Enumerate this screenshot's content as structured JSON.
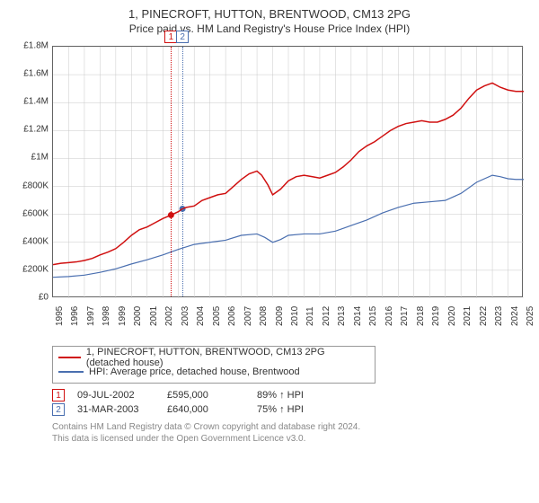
{
  "title": "1, PINECROFT, HUTTON, BRENTWOOD, CM13 2PG",
  "subtitle": "Price paid vs. HM Land Registry's House Price Index (HPI)",
  "chart": {
    "type": "line",
    "background_color": "#ffffff",
    "border_color": "#646464",
    "grid_color": "#c8c8c8",
    "ylim": [
      0,
      1800000
    ],
    "ytick_step": 200000,
    "ytick_labels": [
      "£0",
      "£200K",
      "£400K",
      "£600K",
      "£800K",
      "£1M",
      "£1.2M",
      "£1.4M",
      "£1.6M",
      "£1.8M"
    ],
    "xlim": [
      1995,
      2025
    ],
    "xtick_step": 1,
    "xtick_labels": [
      "1995",
      "1996",
      "1997",
      "1998",
      "1999",
      "2000",
      "2001",
      "2002",
      "2003",
      "2004",
      "2005",
      "2006",
      "2007",
      "2008",
      "2009",
      "2010",
      "2011",
      "2012",
      "2013",
      "2014",
      "2015",
      "2016",
      "2017",
      "2018",
      "2019",
      "2020",
      "2021",
      "2022",
      "2023",
      "2024",
      "2025"
    ],
    "series": [
      {
        "name": "1, PINECROFT, HUTTON, BRENTWOOD, CM13 2PG (detached house)",
        "color": "#d01010",
        "line_width": 1.5,
        "data": [
          [
            1995,
            240000
          ],
          [
            1995.5,
            250000
          ],
          [
            1996,
            255000
          ],
          [
            1996.5,
            260000
          ],
          [
            1997,
            270000
          ],
          [
            1997.5,
            285000
          ],
          [
            1998,
            310000
          ],
          [
            1998.5,
            330000
          ],
          [
            1999,
            355000
          ],
          [
            1999.5,
            400000
          ],
          [
            2000,
            450000
          ],
          [
            2000.5,
            490000
          ],
          [
            2001,
            510000
          ],
          [
            2001.5,
            540000
          ],
          [
            2002,
            570000
          ],
          [
            2002.52,
            595000
          ],
          [
            2003,
            620000
          ],
          [
            2003.25,
            640000
          ],
          [
            2003.5,
            650000
          ],
          [
            2004,
            660000
          ],
          [
            2004.5,
            700000
          ],
          [
            2005,
            720000
          ],
          [
            2005.5,
            740000
          ],
          [
            2006,
            750000
          ],
          [
            2006.5,
            800000
          ],
          [
            2007,
            850000
          ],
          [
            2007.5,
            890000
          ],
          [
            2008,
            910000
          ],
          [
            2008.3,
            880000
          ],
          [
            2008.7,
            810000
          ],
          [
            2009,
            740000
          ],
          [
            2009.5,
            780000
          ],
          [
            2010,
            840000
          ],
          [
            2010.5,
            870000
          ],
          [
            2011,
            880000
          ],
          [
            2011.5,
            870000
          ],
          [
            2012,
            860000
          ],
          [
            2012.5,
            880000
          ],
          [
            2013,
            900000
          ],
          [
            2013.5,
            940000
          ],
          [
            2014,
            990000
          ],
          [
            2014.5,
            1050000
          ],
          [
            2015,
            1090000
          ],
          [
            2015.5,
            1120000
          ],
          [
            2016,
            1160000
          ],
          [
            2016.5,
            1200000
          ],
          [
            2017,
            1230000
          ],
          [
            2017.5,
            1250000
          ],
          [
            2018,
            1260000
          ],
          [
            2018.5,
            1270000
          ],
          [
            2019,
            1260000
          ],
          [
            2019.5,
            1260000
          ],
          [
            2020,
            1280000
          ],
          [
            2020.5,
            1310000
          ],
          [
            2021,
            1360000
          ],
          [
            2021.5,
            1430000
          ],
          [
            2022,
            1490000
          ],
          [
            2022.5,
            1520000
          ],
          [
            2023,
            1540000
          ],
          [
            2023.5,
            1510000
          ],
          [
            2024,
            1490000
          ],
          [
            2024.5,
            1480000
          ],
          [
            2025,
            1480000
          ]
        ]
      },
      {
        "name": "HPI: Average price, detached house, Brentwood",
        "color": "#4a6fb0",
        "line_width": 1.2,
        "data": [
          [
            1995,
            150000
          ],
          [
            1996,
            155000
          ],
          [
            1997,
            165000
          ],
          [
            1998,
            185000
          ],
          [
            1999,
            210000
          ],
          [
            2000,
            245000
          ],
          [
            2001,
            275000
          ],
          [
            2002,
            310000
          ],
          [
            2003,
            350000
          ],
          [
            2004,
            385000
          ],
          [
            2005,
            400000
          ],
          [
            2006,
            415000
          ],
          [
            2007,
            450000
          ],
          [
            2008,
            460000
          ],
          [
            2008.5,
            435000
          ],
          [
            2009,
            400000
          ],
          [
            2009.5,
            420000
          ],
          [
            2010,
            450000
          ],
          [
            2011,
            460000
          ],
          [
            2012,
            460000
          ],
          [
            2013,
            480000
          ],
          [
            2014,
            520000
          ],
          [
            2015,
            560000
          ],
          [
            2016,
            610000
          ],
          [
            2017,
            650000
          ],
          [
            2018,
            680000
          ],
          [
            2019,
            690000
          ],
          [
            2020,
            700000
          ],
          [
            2021,
            750000
          ],
          [
            2022,
            830000
          ],
          [
            2023,
            880000
          ],
          [
            2023.5,
            870000
          ],
          [
            2024,
            855000
          ],
          [
            2024.5,
            850000
          ],
          [
            2025,
            850000
          ]
        ]
      }
    ],
    "sale_markers": [
      {
        "idx": "1",
        "year": 2002.52,
        "price": 595000,
        "color": "#d01010"
      },
      {
        "idx": "2",
        "year": 2003.25,
        "price": 640000,
        "color": "#4a6fb0"
      }
    ]
  },
  "legend": {
    "rows": [
      {
        "color": "#d01010",
        "label": "1, PINECROFT, HUTTON, BRENTWOOD, CM13 2PG (detached house)"
      },
      {
        "color": "#4a6fb0",
        "label": "HPI: Average price, detached house, Brentwood"
      }
    ]
  },
  "sales_table": [
    {
      "idx": "1",
      "color": "#d01010",
      "date": "09-JUL-2002",
      "price": "£595,000",
      "pct": "89% ↑ HPI"
    },
    {
      "idx": "2",
      "color": "#4a6fb0",
      "date": "31-MAR-2003",
      "price": "£640,000",
      "pct": "75% ↑ HPI"
    }
  ],
  "footer1": "Contains HM Land Registry data © Crown copyright and database right 2024.",
  "footer2": "This data is licensed under the Open Government Licence v3.0."
}
